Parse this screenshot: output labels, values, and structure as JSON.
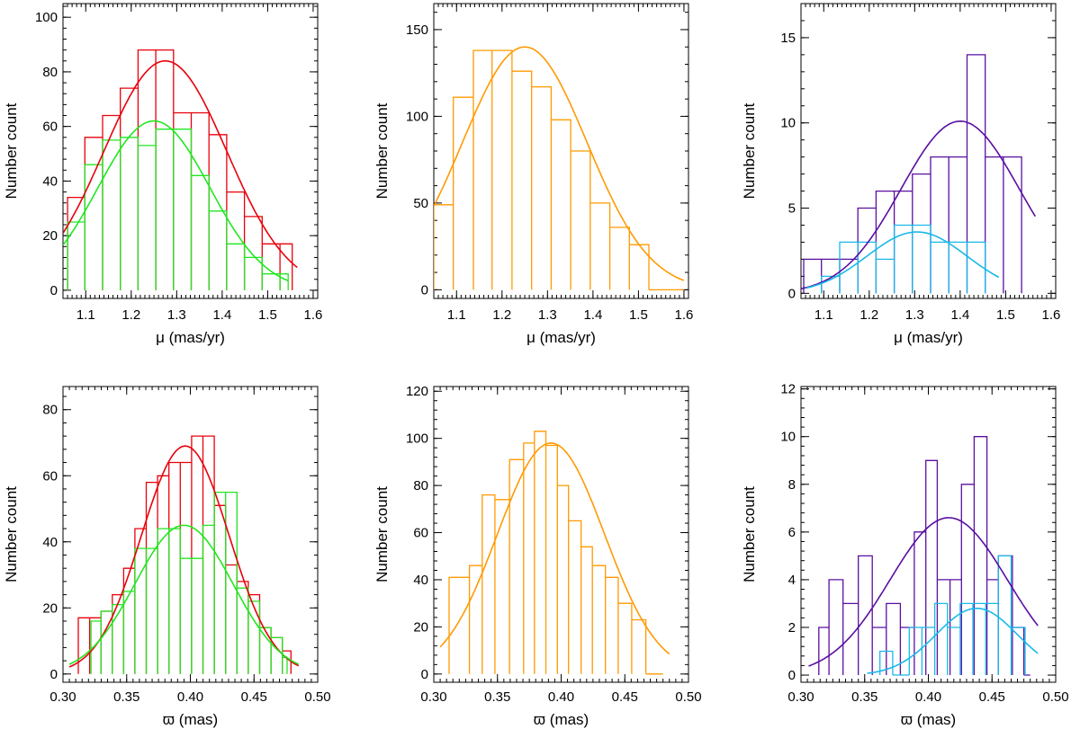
{
  "figure": {
    "rows": 2,
    "cols": 3
  },
  "colors": {
    "red": "#e8000b",
    "green": "#22e622",
    "orange": "#ff9a00",
    "purple": "#5a0fa0",
    "cyan": "#1ab8e8",
    "axis": "#000000"
  },
  "chart_data": [
    {
      "id": "pm-left",
      "type": "histogram",
      "xlabel": "μ (mas/yr)",
      "ylabel": "Number count",
      "xlim": [
        1.05,
        1.61
      ],
      "ylim": [
        -3,
        105
      ],
      "xticks": [
        1.1,
        1.2,
        1.3,
        1.4,
        1.5,
        1.6
      ],
      "xtick_labels": [
        "1.1",
        "1.2",
        "1.3",
        "1.4",
        "1.5",
        "1.6"
      ],
      "yticks": [
        0,
        20,
        40,
        60,
        80,
        100
      ],
      "ytick_labels": [
        "0",
        "20",
        "40",
        "60",
        "80",
        "100"
      ],
      "series": [
        {
          "name": "red histogram",
          "color": "red",
          "edges": [
            1.06,
            1.098,
            1.137,
            1.176,
            1.215,
            1.254,
            1.293,
            1.332,
            1.371,
            1.41,
            1.449,
            1.488,
            1.527,
            1.554
          ],
          "counts": [
            34,
            56,
            64,
            74,
            88,
            88,
            65,
            65,
            57,
            36,
            27,
            17,
            17
          ]
        },
        {
          "name": "green histogram",
          "color": "green",
          "edges": [
            1.06,
            1.098,
            1.137,
            1.176,
            1.215,
            1.254,
            1.293,
            1.332,
            1.371,
            1.41,
            1.449,
            1.488,
            1.527,
            1.545
          ],
          "counts": [
            25,
            46,
            55,
            56,
            53,
            59,
            59,
            42,
            29,
            17,
            12,
            6,
            6
          ]
        }
      ],
      "fits": [
        {
          "name": "red Gaussian fit",
          "color": "red",
          "amplitude": 84,
          "mean": 1.275,
          "sigma": 0.135,
          "range": [
            1.05,
            1.565
          ]
        },
        {
          "name": "green Gaussian fit",
          "color": "green",
          "amplitude": 62,
          "mean": 1.25,
          "sigma": 0.123,
          "range": [
            1.05,
            1.545
          ]
        }
      ]
    },
    {
      "id": "pm-middle",
      "type": "histogram",
      "xlabel": "μ (mas/yr)",
      "ylabel": "Number count",
      "xlim": [
        1.05,
        1.61
      ],
      "ylim": [
        -5,
        165
      ],
      "xticks": [
        1.1,
        1.2,
        1.3,
        1.4,
        1.5,
        1.6
      ],
      "xtick_labels": [
        "1.1",
        "1.2",
        "1.3",
        "1.4",
        "1.5",
        "1.6"
      ],
      "yticks": [
        0,
        50,
        100,
        150
      ],
      "ytick_labels": [
        "0",
        "50",
        "100",
        "150"
      ],
      "series": [
        {
          "name": "orange histogram",
          "color": "orange",
          "edges": [
            1.05,
            1.093,
            1.137,
            1.178,
            1.222,
            1.265,
            1.308,
            1.351,
            1.394,
            1.437,
            1.48,
            1.523,
            1.566,
            1.6
          ],
          "counts": [
            49,
            111,
            138,
            138,
            126,
            117,
            98,
            80,
            50,
            36,
            26,
            0,
            0
          ]
        }
      ],
      "fits": [
        {
          "name": "orange Gaussian fit",
          "color": "orange",
          "amplitude": 140,
          "mean": 1.25,
          "sigma": 0.137,
          "range": [
            1.05,
            1.6
          ]
        }
      ]
    },
    {
      "id": "pm-right",
      "type": "histogram",
      "xlabel": "μ (mas/yr)",
      "ylabel": "Number count",
      "xlim": [
        1.05,
        1.61
      ],
      "ylim": [
        -0.3,
        17
      ],
      "xticks": [
        1.1,
        1.2,
        1.3,
        1.4,
        1.5,
        1.6
      ],
      "xtick_labels": [
        "1.1",
        "1.2",
        "1.3",
        "1.4",
        "1.5",
        "1.6"
      ],
      "yticks": [
        0,
        5,
        10,
        15
      ],
      "ytick_labels": [
        "0",
        "5",
        "10",
        "15"
      ],
      "series": [
        {
          "name": "purple histogram",
          "color": "purple",
          "edges": [
            1.056,
            1.095,
            1.135,
            1.175,
            1.215,
            1.255,
            1.295,
            1.335,
            1.375,
            1.415,
            1.455,
            1.495,
            1.535
          ],
          "counts": [
            2,
            2,
            2,
            5,
            6,
            6,
            7,
            8,
            8,
            14,
            8,
            8
          ]
        },
        {
          "name": "cyan histogram",
          "color": "cyan",
          "edges": [
            1.095,
            1.135,
            1.175,
            1.215,
            1.255,
            1.295,
            1.335,
            1.375,
            1.415,
            1.455
          ],
          "counts": [
            1,
            3,
            3,
            2,
            4,
            4,
            3,
            3,
            3
          ]
        }
      ],
      "fits": [
        {
          "name": "purple Gaussian fit",
          "color": "purple",
          "amplitude": 10.1,
          "mean": 1.4,
          "sigma": 0.13,
          "range": [
            1.05,
            1.565
          ]
        },
        {
          "name": "cyan Gaussian fit",
          "color": "cyan",
          "amplitude": 3.6,
          "mean": 1.305,
          "sigma": 0.11,
          "range": [
            1.06,
            1.485
          ]
        }
      ]
    },
    {
      "id": "plx-left",
      "type": "histogram",
      "xlabel": "ϖ (mas)",
      "ylabel": "Number count",
      "xlim": [
        0.3,
        0.5
      ],
      "ylim": [
        -2.5,
        87
      ],
      "xticks": [
        0.3,
        0.35,
        0.4,
        0.45,
        0.5
      ],
      "xtick_labels": [
        "0.30",
        "0.35",
        "0.40",
        "0.45",
        "0.50"
      ],
      "yticks": [
        0,
        20,
        40,
        60,
        80
      ],
      "ytick_labels": [
        "0",
        "20",
        "40",
        "60",
        "80"
      ],
      "series": [
        {
          "name": "red histogram",
          "color": "red",
          "edges": [
            0.312,
            0.3209,
            0.3298,
            0.3387,
            0.3476,
            0.3565,
            0.3654,
            0.3743,
            0.3832,
            0.3921,
            0.401,
            0.4099,
            0.4188,
            0.4277,
            0.4366,
            0.4455,
            0.4544,
            0.4633,
            0.4722,
            0.479
          ],
          "counts": [
            17,
            17,
            19,
            24,
            32,
            44,
            58,
            60,
            64,
            64,
            72,
            72,
            51,
            33,
            28,
            24,
            14,
            11,
            7
          ]
        },
        {
          "name": "green histogram",
          "color": "green",
          "edges": [
            0.322,
            0.3298,
            0.3387,
            0.3476,
            0.3565,
            0.3654,
            0.3743,
            0.3832,
            0.3921,
            0.401,
            0.4099,
            0.4188,
            0.4277,
            0.4366,
            0.4455,
            0.4544,
            0.4633,
            0.4722,
            0.476
          ],
          "counts": [
            16,
            19,
            21,
            25,
            38,
            38,
            44,
            44,
            35,
            35,
            45,
            55,
            55,
            26,
            22,
            14,
            11,
            5
          ]
        }
      ],
      "fits": [
        {
          "name": "red Gaussian fit",
          "color": "red",
          "amplitude": 69,
          "mean": 0.396,
          "sigma": 0.0345,
          "range": [
            0.305,
            0.485
          ]
        },
        {
          "name": "green Gaussian fit",
          "color": "green",
          "amplitude": 45,
          "mean": 0.395,
          "sigma": 0.0385,
          "range": [
            0.305,
            0.485
          ]
        }
      ]
    },
    {
      "id": "plx-middle",
      "type": "histogram",
      "xlabel": "ϖ (mas)",
      "ylabel": "Number count",
      "xlim": [
        0.3,
        0.5
      ],
      "ylim": [
        -3.5,
        122
      ],
      "xticks": [
        0.3,
        0.35,
        0.4,
        0.45,
        0.5
      ],
      "xtick_labels": [
        "0.30",
        "0.35",
        "0.40",
        "0.45",
        "0.50"
      ],
      "yticks": [
        0,
        20,
        40,
        60,
        80,
        100,
        120
      ],
      "ytick_labels": [
        "0",
        "20",
        "40",
        "60",
        "80",
        "100",
        "120"
      ],
      "series": [
        {
          "name": "orange histogram",
          "color": "orange",
          "edges": [
            0.312,
            0.328,
            0.338,
            0.348,
            0.3595,
            0.3705,
            0.379,
            0.388,
            0.397,
            0.4058,
            0.4157,
            0.4245,
            0.4348,
            0.4448,
            0.4554,
            0.4665,
            0.48
          ],
          "counts": [
            41,
            46,
            76,
            74,
            91,
            98,
            103,
            97,
            80,
            65,
            54,
            46,
            41,
            30,
            23,
            0
          ]
        }
      ],
      "fits": [
        {
          "name": "orange Gaussian fit",
          "color": "orange",
          "amplitude": 98,
          "mean": 0.392,
          "sigma": 0.042,
          "range": [
            0.305,
            0.485
          ]
        }
      ]
    },
    {
      "id": "plx-right",
      "type": "histogram",
      "xlabel": "ϖ (mas)",
      "ylabel": "Number count",
      "xlim": [
        0.3,
        0.5
      ],
      "ylim": [
        -0.3,
        12.1
      ],
      "xticks": [
        0.3,
        0.35,
        0.4,
        0.45,
        0.5
      ],
      "xtick_labels": [
        "0.30",
        "0.35",
        "0.40",
        "0.45",
        "0.50"
      ],
      "yticks": [
        0,
        2,
        4,
        6,
        8,
        10,
        12
      ],
      "ytick_labels": [
        "0",
        "2",
        "4",
        "6",
        "8",
        "10",
        "12"
      ],
      "series": [
        {
          "name": "purple histogram",
          "color": "purple",
          "edges": [
            0.314,
            0.322,
            0.333,
            0.345,
            0.356,
            0.367,
            0.378,
            0.389,
            0.398,
            0.407,
            0.417,
            0.426,
            0.436,
            0.446,
            0.455,
            0.466,
            0.475,
            0.48
          ],
          "counts": [
            2,
            4,
            3,
            5,
            2,
            3,
            2,
            6,
            9,
            4,
            4,
            8,
            10,
            4,
            5,
            2,
            0
          ]
        },
        {
          "name": "cyan histogram",
          "color": "cyan",
          "edges": [
            0.362,
            0.372,
            0.385,
            0.395,
            0.405,
            0.415,
            0.425,
            0.435,
            0.445,
            0.455,
            0.465,
            0.476
          ],
          "counts": [
            1,
            0,
            2,
            2,
            3,
            2,
            3,
            3,
            3,
            5,
            2
          ]
        }
      ],
      "fits": [
        {
          "name": "purple Gaussian fit",
          "color": "purple",
          "amplitude": 6.6,
          "mean": 0.416,
          "sigma": 0.046,
          "range": [
            0.306,
            0.486
          ]
        },
        {
          "name": "cyan Gaussian fit",
          "color": "cyan",
          "amplitude": 2.8,
          "mean": 0.438,
          "sigma": 0.032,
          "range": [
            0.352,
            0.486
          ]
        }
      ]
    }
  ]
}
